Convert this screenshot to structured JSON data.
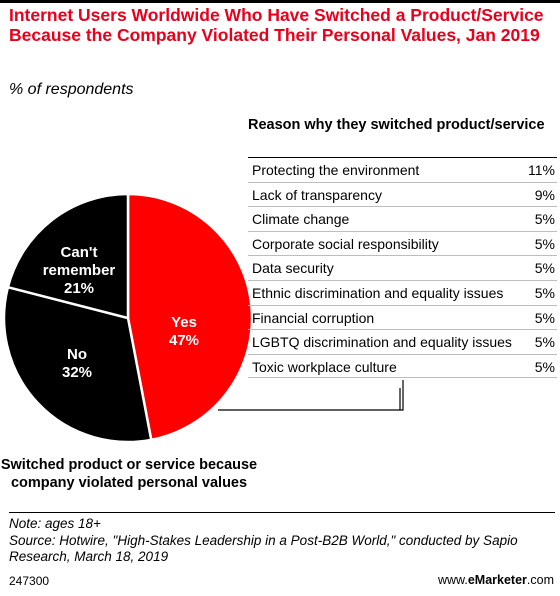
{
  "title": "Internet Users Worldwide Who Have Switched a Product/Service Because the Company Violated Their Personal Values, Jan 2019",
  "subtitle": "% of respondents",
  "colors": {
    "accent": "#e8001c",
    "dark": "#000000"
  },
  "chart_data": [
    {
      "type": "pie",
      "caption": "Switched product or service because company violated personal values",
      "slices": [
        {
          "label": "Yes",
          "value": 47,
          "value_label": "47%",
          "color": "#ff0000"
        },
        {
          "label": "No",
          "value": 32,
          "value_label": "32%",
          "color": "#000000"
        },
        {
          "label": "Can't remember",
          "value": 21,
          "value_label": "21%",
          "color": "#000000"
        }
      ]
    },
    {
      "type": "table",
      "header": "Reason why they switched product/service",
      "rows": [
        {
          "reason": "Protecting the environment",
          "value": 11,
          "value_label": "11%"
        },
        {
          "reason": "Lack of transparency",
          "value": 9,
          "value_label": "9%"
        },
        {
          "reason": "Climate change",
          "value": 5,
          "value_label": "5%"
        },
        {
          "reason": "Corporate social responsibility",
          "value": 5,
          "value_label": "5%"
        },
        {
          "reason": "Data security",
          "value": 5,
          "value_label": "5%"
        },
        {
          "reason": "Ethnic discrimination and equality issues",
          "value": 5,
          "value_label": "5%"
        },
        {
          "reason": "Financial corruption",
          "value": 5,
          "value_label": "5%"
        },
        {
          "reason": "LGBTQ discrimination and equality issues",
          "value": 5,
          "value_label": "5%"
        },
        {
          "reason": "Toxic workplace culture",
          "value": 5,
          "value_label": "5%"
        }
      ]
    }
  ],
  "footer": {
    "note": "Note: ages 18+",
    "source": "Source: Hotwire, \"High-Stakes Leadership in a Post-B2B World,\" conducted by Sapio Research, March 18, 2019",
    "chart_id": "247300",
    "brand_prefix": "www.",
    "brand_name": "eMarketer",
    "brand_suffix": ".com"
  }
}
